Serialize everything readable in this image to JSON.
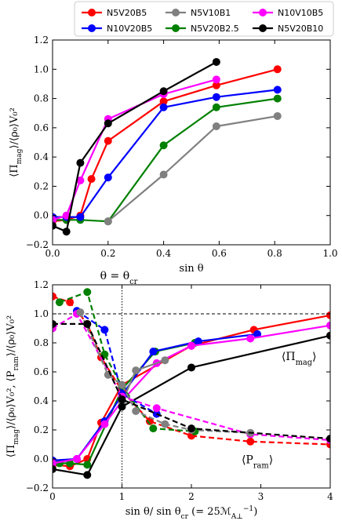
{
  "figure": {
    "legend": {
      "placement": "top",
      "entries": [
        {
          "name": "N5V20B5",
          "color": "#ff0000"
        },
        {
          "name": "N10V20B5",
          "color": "#0000ff"
        },
        {
          "name": "N5V10B1",
          "color": "#808080"
        },
        {
          "name": "N5V20B2.5",
          "color": "#008000"
        },
        {
          "name": "N10V10B5",
          "color": "#ff00ff"
        },
        {
          "name": "N5V20B10",
          "color": "#000000"
        }
      ]
    }
  },
  "chart_data": [
    {
      "type": "line",
      "xlabel": "sin θ",
      "ylabel": "⟨Π_mag⟩/⟨ρ₀⟩V₀²",
      "xlim": [
        0,
        1.0
      ],
      "ylim": [
        -0.2,
        1.2
      ],
      "xticks": [
        "0.0",
        "0.2",
        "0.4",
        "0.6",
        "0.8",
        "1.0"
      ],
      "yticks": [
        "−0.2",
        "0.0",
        "0.2",
        "0.4",
        "0.6",
        "0.8",
        "1.0",
        "1.2"
      ],
      "series": [
        {
          "name": "N5V20B5",
          "color": "#ff0000",
          "style": "solid",
          "points": [
            [
              0.0,
              -0.04
            ],
            [
              0.05,
              -0.03
            ],
            [
              0.1,
              0.0
            ],
            [
              0.14,
              0.25
            ],
            [
              0.2,
              0.51
            ],
            [
              0.4,
              0.78
            ],
            [
              0.59,
              0.89
            ],
            [
              0.81,
              1.0
            ]
          ]
        },
        {
          "name": "N5V20B2.5",
          "color": "#008000",
          "style": "solid",
          "points": [
            [
              0.0,
              -0.03
            ],
            [
              0.05,
              -0.03
            ],
            [
              0.1,
              -0.03
            ],
            [
              0.2,
              -0.04
            ],
            [
              0.4,
              0.48
            ],
            [
              0.59,
              0.74
            ],
            [
              0.81,
              0.8
            ]
          ]
        },
        {
          "name": "N10V20B5",
          "color": "#0000ff",
          "style": "solid",
          "points": [
            [
              0.0,
              -0.01
            ],
            [
              0.05,
              -0.01
            ],
            [
              0.1,
              -0.01
            ],
            [
              0.2,
              0.26
            ],
            [
              0.4,
              0.74
            ],
            [
              0.59,
              0.81
            ],
            [
              0.81,
              0.86
            ]
          ]
        },
        {
          "name": "N10V10B5",
          "color": "#ff00ff",
          "style": "solid",
          "points": [
            [
              0.0,
              -0.03
            ],
            [
              0.05,
              0.0
            ],
            [
              0.1,
              0.24
            ],
            [
              0.2,
              0.66
            ],
            [
              0.4,
              0.83
            ],
            [
              0.59,
              0.93
            ]
          ]
        },
        {
          "name": "N5V10B1",
          "color": "#808080",
          "style": "solid",
          "points": [
            [
              0.2,
              -0.04
            ],
            [
              0.4,
              0.28
            ],
            [
              0.59,
              0.61
            ],
            [
              0.81,
              0.68
            ]
          ]
        },
        {
          "name": "N5V20B10",
          "color": "#000000",
          "style": "solid",
          "points": [
            [
              0.0,
              -0.07
            ],
            [
              0.05,
              -0.11
            ],
            [
              0.1,
              0.36
            ],
            [
              0.2,
              0.63
            ],
            [
              0.4,
              0.85
            ],
            [
              0.59,
              1.05
            ]
          ]
        }
      ]
    },
    {
      "type": "line",
      "xlabel": "sin θ/ sin θ_cr (= 25ℳ_A⊥^−1)",
      "ylabel": "⟨Π_mag⟩/⟨ρ₀⟩V₀², ⟨P_ram⟩/⟨ρ₀⟩V₀²",
      "xlim": [
        0,
        4
      ],
      "ylim": [
        -0.2,
        1.2
      ],
      "xticks": [
        "0",
        "1",
        "2",
        "3",
        "4"
      ],
      "yticks": [
        "−0.2",
        "0.0",
        "0.2",
        "0.4",
        "0.6",
        "0.8",
        "1.0",
        "1.2"
      ],
      "title": "θ = θ_cr",
      "reference_lines": {
        "vertical_x": 1.0,
        "horizontal_y": 1.0
      },
      "annotations": [
        {
          "text": "⟨Π_mag⟩",
          "x": 3.55,
          "y": 0.68
        },
        {
          "text": "⟨P_ram⟩",
          "x": 2.95,
          "y": -0.03
        }
      ],
      "series": [
        {
          "name": "N5V20B5",
          "quantity": "Π_mag",
          "color": "#ff0000",
          "style": "solid",
          "points": [
            [
              0.0,
              -0.04
            ],
            [
              0.25,
              -0.05
            ],
            [
              0.5,
              0.0
            ],
            [
              0.7,
              0.25
            ],
            [
              1.0,
              0.51
            ],
            [
              2.0,
              0.78
            ],
            [
              2.9,
              0.89
            ],
            [
              4.0,
              0.99
            ]
          ]
        },
        {
          "name": "N5V20B2.5",
          "quantity": "Π_mag",
          "color": "#008000",
          "style": "solid",
          "points": [
            [
              0.1,
              -0.03
            ],
            [
              0.25,
              -0.03
            ],
            [
              0.5,
              -0.04
            ],
            [
              1.0,
              0.48
            ],
            [
              1.48,
              0.74
            ],
            [
              2.05,
              0.8
            ]
          ]
        },
        {
          "name": "N10V20B5",
          "quantity": "Π_mag",
          "color": "#0000ff",
          "style": "solid",
          "points": [
            [
              0.0,
              -0.01
            ],
            [
              0.35,
              0.0
            ],
            [
              0.75,
              0.26
            ],
            [
              1.0,
              0.44
            ],
            [
              1.45,
              0.74
            ],
            [
              2.1,
              0.81
            ],
            [
              2.95,
              0.86
            ]
          ]
        },
        {
          "name": "N10V10B5",
          "quantity": "Π_mag",
          "color": "#ff00ff",
          "style": "solid",
          "points": [
            [
              0.0,
              -0.03
            ],
            [
              0.35,
              0.0
            ],
            [
              0.75,
              0.24
            ],
            [
              1.0,
              0.4
            ],
            [
              1.5,
              0.66
            ],
            [
              2.0,
              0.78
            ],
            [
              2.85,
              0.83
            ],
            [
              4.0,
              0.92
            ]
          ]
        },
        {
          "name": "N5V10B1",
          "quantity": "Π_mag",
          "color": "#808080",
          "style": "solid",
          "points": [
            [
              1.0,
              0.39
            ],
            [
              1.2,
              0.61
            ],
            [
              1.62,
              0.68
            ]
          ]
        },
        {
          "name": "N5V20B10",
          "quantity": "Π_mag",
          "color": "#000000",
          "style": "solid",
          "points": [
            [
              0.0,
              -0.07
            ],
            [
              0.5,
              -0.11
            ],
            [
              1.0,
              0.36
            ],
            [
              2.0,
              0.63
            ],
            [
              4.0,
              0.85
            ]
          ]
        },
        {
          "name": "N5V20B5",
          "quantity": "P_ram",
          "color": "#ff0000",
          "style": "dashed",
          "points": [
            [
              0.0,
              1.12
            ],
            [
              0.25,
              1.08
            ],
            [
              0.5,
              0.93
            ],
            [
              0.7,
              0.7
            ],
            [
              1.0,
              0.47
            ],
            [
              1.4,
              0.26
            ],
            [
              2.0,
              0.16
            ],
            [
              2.85,
              0.12
            ],
            [
              4.0,
              0.1
            ]
          ]
        },
        {
          "name": "N5V20B2.5",
          "quantity": "P_ram",
          "color": "#008000",
          "style": "dashed",
          "points": [
            [
              0.1,
              1.08
            ],
            [
              0.5,
              1.15
            ],
            [
              0.75,
              0.72
            ],
            [
              1.0,
              0.5
            ],
            [
              1.45,
              0.21
            ],
            [
              2.05,
              0.19
            ]
          ]
        },
        {
          "name": "N10V20B5",
          "quantity": "P_ram",
          "color": "#0000ff",
          "style": "dashed",
          "points": [
            [
              0.35,
              1.02
            ],
            [
              0.75,
              0.89
            ],
            [
              1.0,
              0.45
            ],
            [
              1.5,
              0.31
            ]
          ]
        },
        {
          "name": "N10V10B5",
          "quantity": "P_ram",
          "color": "#ff00ff",
          "style": "dashed",
          "points": [
            [
              0.0,
              0.9
            ],
            [
              0.35,
              1.0
            ],
            [
              1.0,
              0.43
            ],
            [
              1.5,
              0.35
            ],
            [
              2.85,
              0.17
            ],
            [
              4.0,
              0.13
            ]
          ]
        },
        {
          "name": "N5V10B1",
          "quantity": "P_ram",
          "color": "#808080",
          "style": "dashed",
          "points": [
            [
              0.4,
              1.01
            ],
            [
              0.8,
              0.58
            ],
            [
              1.0,
              0.51
            ],
            [
              1.2,
              0.33
            ],
            [
              1.62,
              0.24
            ],
            [
              2.0,
              0.2
            ],
            [
              2.85,
              0.18
            ]
          ]
        },
        {
          "name": "N5V20B10",
          "quantity": "P_ram",
          "color": "#000000",
          "style": "dashed",
          "points": [
            [
              0.0,
              0.93
            ],
            [
              0.5,
              0.93
            ],
            [
              1.0,
              0.41
            ],
            [
              2.0,
              0.21
            ],
            [
              4.0,
              0.14
            ]
          ]
        }
      ]
    }
  ]
}
